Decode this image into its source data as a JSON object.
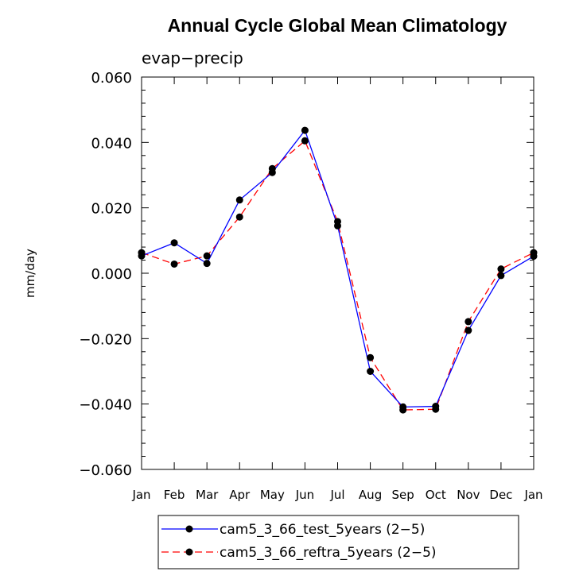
{
  "chart_data": {
    "type": "line",
    "title": "Annual Cycle Global Mean Climatology",
    "subtitle": "evap−precip",
    "ylabel": "mm/day",
    "xlabel": "",
    "categories": [
      "Jan",
      "Feb",
      "Mar",
      "Apr",
      "May",
      "Jun",
      "Jul",
      "Aug",
      "Sep",
      "Oct",
      "Nov",
      "Dec",
      "Jan"
    ],
    "ylim": [
      -0.06,
      0.06
    ],
    "yticks": [
      -0.06,
      -0.04,
      -0.02,
      0.0,
      0.02,
      0.04,
      0.06
    ],
    "ytick_labels": [
      "−0.060",
      "−0.040",
      "−0.020",
      "0.000",
      "0.020",
      "0.040",
      "0.060"
    ],
    "grid": false,
    "legend_position": "bottom",
    "series": [
      {
        "name": "cam5_3_66_test_5years (2−5)",
        "color": "#0000ff",
        "dash": "solid",
        "marker": "filled-circle",
        "values": [
          0.0053,
          0.0093,
          0.003,
          0.0224,
          0.0308,
          0.0437,
          0.0145,
          -0.03,
          -0.0409,
          -0.0407,
          -0.0175,
          -0.0007,
          0.0052
        ]
      },
      {
        "name": "cam5_3_66_reftra_5years (2−5)",
        "color": "#ff0000",
        "dash": "dashed",
        "marker": "filled-circle",
        "values": [
          0.0063,
          0.0028,
          0.0053,
          0.0172,
          0.032,
          0.0405,
          0.0158,
          -0.0258,
          -0.0418,
          -0.0416,
          -0.0148,
          0.0013,
          0.0063
        ]
      }
    ]
  }
}
